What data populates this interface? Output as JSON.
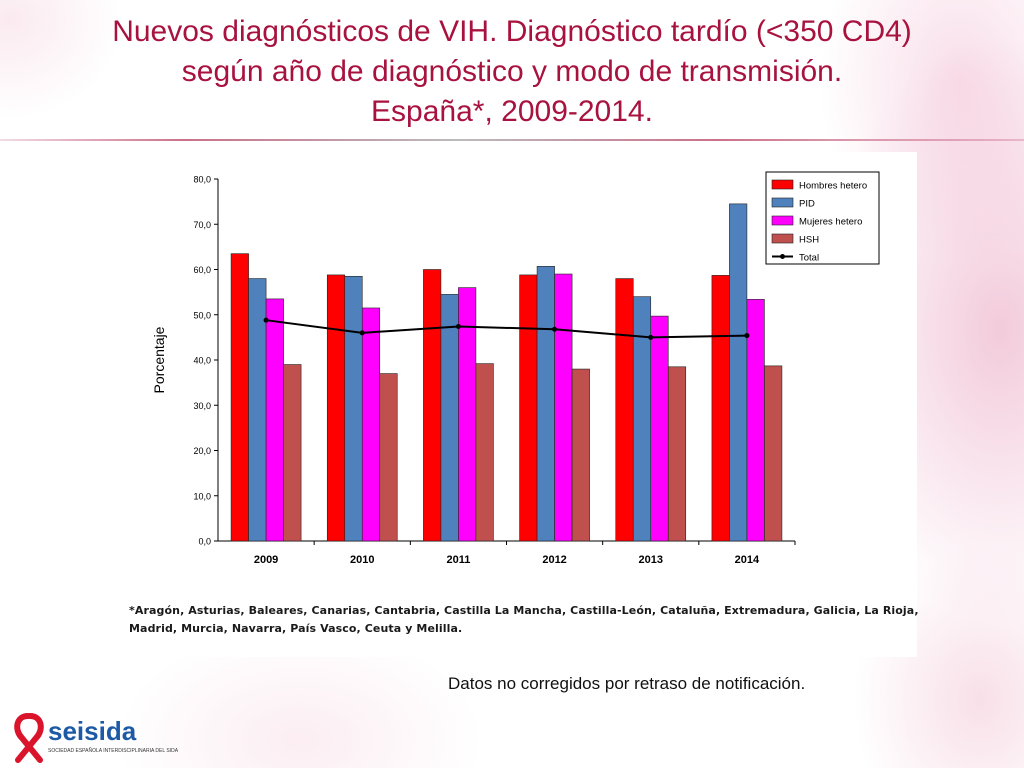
{
  "slide": {
    "title_lines": [
      "Nuevos diagnósticos de VIH. Diagnóstico tardío (<350 CD4)",
      "según año de diagnóstico y modo de transmisión.",
      "España*, 2009-2014."
    ],
    "footnote_lines": [
      "*Aragón, Asturias, Baleares, Canarias, Cantabria, Castilla La Mancha, Castilla-León, Cataluña, Extremadura, Galicia, La Rioja,",
      "Madrid, Murcia, Navarra, País Vasco, Ceuta y Melilla."
    ],
    "caption": "Datos no corregidos por retraso de notificación.",
    "logo": {
      "text_main": "seisida",
      "text_sub": "SOCIEDAD ESPAÑOLA INTERDISCIPLINARIA DEL SIDA",
      "icon": "red-ribbon-icon"
    }
  },
  "chart_data": {
    "type": "bar",
    "title": "",
    "xlabel": "",
    "ylabel": "Porcentaje",
    "ylim": [
      0,
      80
    ],
    "yticks": [
      "0,0",
      "10,0",
      "20,0",
      "30,0",
      "40,0",
      "50,0",
      "60,0",
      "70,0",
      "80,0"
    ],
    "categories": [
      "2009",
      "2010",
      "2011",
      "2012",
      "2013",
      "2014"
    ],
    "legend_position": "top-right",
    "grid": false,
    "series": [
      {
        "name": "Hombres hetero",
        "color": "#ff0000",
        "values": [
          63.5,
          58.8,
          60.0,
          58.8,
          58.0,
          58.7
        ]
      },
      {
        "name": "PID",
        "color": "#4f81bd",
        "values": [
          58.0,
          58.5,
          54.5,
          60.7,
          54.0,
          74.5
        ]
      },
      {
        "name": "Mujeres hetero",
        "color": "#ff00ff",
        "values": [
          53.5,
          51.5,
          56.0,
          59.0,
          49.7,
          53.4
        ]
      },
      {
        "name": "HSH",
        "color": "#c0504d",
        "values": [
          39.0,
          37.0,
          39.2,
          38.0,
          38.5,
          38.7
        ]
      }
    ],
    "line_series": {
      "name": "Total",
      "color": "#000000",
      "values": [
        48.8,
        46.0,
        47.4,
        46.8,
        45.0,
        45.4
      ]
    }
  }
}
